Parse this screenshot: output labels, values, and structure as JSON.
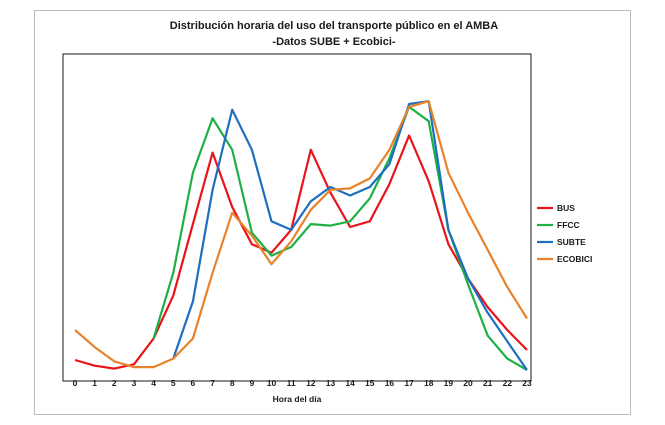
{
  "chart_data": {
    "type": "line",
    "title": "Distribución horaria del uso del transporte público en el AMBA",
    "subtitle": "-Datos SUBE + Ecobici-",
    "xlabel": "Hora del día",
    "ylabel": "",
    "x": [
      0,
      1,
      2,
      3,
      4,
      5,
      6,
      7,
      8,
      9,
      10,
      11,
      12,
      13,
      14,
      15,
      16,
      17,
      18,
      19,
      20,
      21,
      22,
      23
    ],
    "ylim": [
      0,
      100
    ],
    "grid": false,
    "legend": "right",
    "series": [
      {
        "name": "BUS",
        "color": "#e8141a",
        "values": [
          3.5,
          1.5,
          0.5,
          2,
          11,
          26,
          51,
          76,
          57,
          44,
          41,
          49,
          77,
          62,
          50,
          52,
          65,
          82,
          66,
          44,
          32,
          22,
          14,
          7
        ]
      },
      {
        "name": "FFCC",
        "color": "#1fb045",
        "values": [
          null,
          null,
          null,
          null,
          11,
          34,
          69,
          88,
          77,
          48,
          40,
          43,
          51,
          50.5,
          52,
          60,
          74,
          92,
          87,
          49,
          30,
          12,
          4,
          0
        ]
      },
      {
        "name": "SUBTE",
        "color": "#1f6fc0",
        "values": [
          null,
          null,
          null,
          null,
          null,
          4,
          24,
          63,
          91,
          77,
          52,
          49,
          59,
          64,
          61,
          64,
          72,
          93,
          94,
          49,
          32,
          20,
          10,
          0
        ]
      },
      {
        "name": "ECOBICI",
        "color": "#e8822b",
        "values": [
          14,
          8,
          3,
          1,
          1,
          4,
          11,
          34,
          55,
          47,
          37,
          45,
          56,
          63,
          63.5,
          67,
          77,
          92,
          94,
          69,
          55,
          42,
          29,
          18
        ]
      }
    ]
  }
}
